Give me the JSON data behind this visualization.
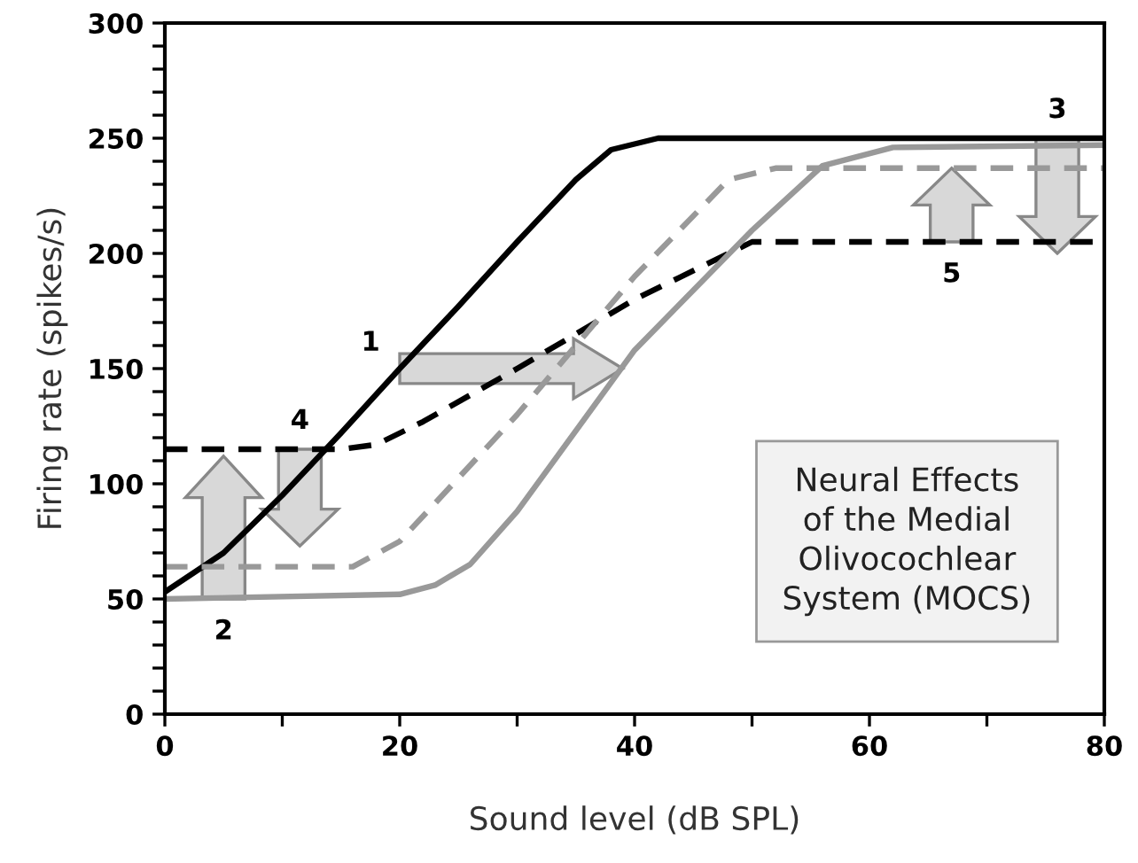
{
  "chart_data": {
    "type": "line",
    "xlabel": "Sound level (dB SPL)",
    "ylabel": "Firing rate (spikes/s)",
    "xlim": [
      0,
      80
    ],
    "ylim": [
      0,
      300
    ],
    "xticks": [
      0,
      {
        "value": 10,
        "label": null
      },
      20,
      {
        "value": 30,
        "label": null
      },
      40,
      {
        "value": 50,
        "label": null
      },
      60,
      {
        "value": 70,
        "label": null
      },
      80
    ],
    "yticks": [
      0,
      {
        "value": 10,
        "label": null
      },
      {
        "value": 20,
        "label": null
      },
      {
        "value": 30,
        "label": null
      },
      {
        "value": 40,
        "label": null
      },
      50,
      {
        "value": 60,
        "label": null
      },
      {
        "value": 70,
        "label": null
      },
      {
        "value": 80,
        "label": null
      },
      {
        "value": 90,
        "label": null
      },
      100,
      {
        "value": 110,
        "label": null
      },
      {
        "value": 120,
        "label": null
      },
      {
        "value": 130,
        "label": null
      },
      {
        "value": 140,
        "label": null
      },
      150,
      {
        "value": 160,
        "label": null
      },
      {
        "value": 170,
        "label": null
      },
      {
        "value": 180,
        "label": null
      },
      {
        "value": 190,
        "label": null
      },
      200,
      {
        "value": 210,
        "label": null
      },
      {
        "value": 220,
        "label": null
      },
      {
        "value": 230,
        "label": null
      },
      {
        "value": 240,
        "label": null
      },
      250,
      {
        "value": 260,
        "label": null
      },
      {
        "value": 270,
        "label": null
      },
      {
        "value": 280,
        "label": null
      },
      {
        "value": 290,
        "label": null
      },
      300
    ],
    "grid": false,
    "marker": "none",
    "series": [
      {
        "color": "#000000",
        "line_style": "solid",
        "x": [
          0,
          5,
          10,
          15,
          20,
          25,
          30,
          35,
          38,
          42,
          80
        ],
        "values": [
          53,
          70,
          95,
          122,
          150,
          177,
          205,
          232,
          245,
          250,
          250
        ]
      },
      {
        "color": "#000000",
        "line_style": "dashed",
        "x": [
          0,
          15,
          18,
          22,
          30,
          40,
          50,
          80
        ],
        "values": [
          115,
          115,
          117,
          127,
          150,
          180,
          205,
          205
        ]
      },
      {
        "color": "#999999",
        "line_style": "dashed",
        "x": [
          0,
          16,
          20,
          30,
          40,
          48,
          52,
          80
        ],
        "values": [
          64,
          64,
          75,
          130,
          190,
          232,
          237,
          237
        ]
      },
      {
        "color": "#999999",
        "line_style": "solid",
        "x": [
          0,
          20,
          23,
          26,
          30,
          40,
          50,
          56,
          62,
          80
        ],
        "values": [
          50,
          52,
          56,
          65,
          88,
          158,
          210,
          238,
          246,
          247
        ]
      }
    ],
    "annotations": [
      {
        "text": "1",
        "x": 20,
        "y": 150
      },
      {
        "text": "2",
        "x": 5,
        "y": 50
      },
      {
        "text": "3",
        "x": 76,
        "y": 250
      },
      {
        "text": "4",
        "x": 11.5,
        "y": 115
      },
      {
        "text": "5",
        "x": 67,
        "y": 205
      },
      "Neural Effects\nof the Medial\nOlivocochlear\nSystem (MOCS)"
    ]
  }
}
